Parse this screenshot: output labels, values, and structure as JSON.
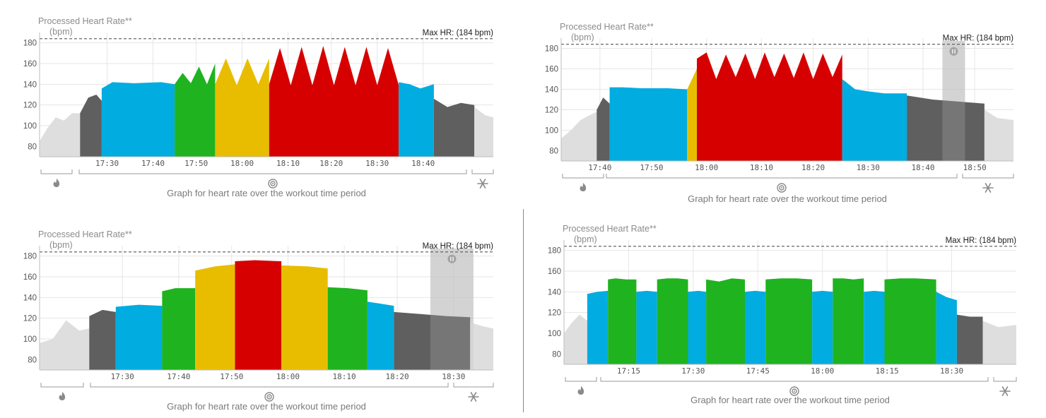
{
  "colors": {
    "warmup_cooldown": "#dedede",
    "dark": "#5f5f5f",
    "blue": "#00ace0",
    "green": "#1fb31f",
    "yellow": "#e8bd00",
    "red": "#d60000",
    "pause_band": "#bdbdbd",
    "grid": "#e6e6e6",
    "maxline": "#555555",
    "text": "#8c8c8c"
  },
  "chart_data": [
    {
      "type": "area",
      "title": "Processed Heart Rate**",
      "ylabel": "(bpm)",
      "caption": "Graph for heart rate over the workout time period",
      "max_hr_label": "Max HR: (184 bpm)",
      "max_hr": 184,
      "ylim": [
        70,
        190
      ],
      "yticks": [
        80,
        100,
        120,
        140,
        160,
        180
      ],
      "xlim": [
        17.25,
        18.93
      ],
      "xticks": [
        17.5,
        17.67,
        17.83,
        18.0,
        18.17,
        18.33,
        18.5,
        18.67
      ],
      "xtick_labels": [
        "17:30",
        "17:40",
        "17:50",
        "18:00",
        "18:10",
        "18:20",
        "18:30",
        "18:40"
      ],
      "grid": true,
      "segments": [
        {
          "x": [
            17.25,
            17.28,
            17.31,
            17.34,
            17.37,
            17.4
          ],
          "y": [
            85,
            98,
            108,
            105,
            112,
            112
          ],
          "zone": "warmup"
        },
        {
          "x": [
            17.4,
            17.43,
            17.46,
            17.48
          ],
          "y": [
            112,
            127,
            130,
            124
          ],
          "zone": "dark"
        },
        {
          "x": [
            17.48,
            17.52,
            17.6,
            17.7,
            17.75
          ],
          "y": [
            136,
            142,
            141,
            142,
            140
          ],
          "zone": "blue"
        },
        {
          "x": [
            17.75,
            17.78,
            17.81,
            17.84,
            17.87,
            17.9
          ],
          "y": [
            140,
            151,
            141,
            157,
            140,
            160
          ],
          "zone": "green"
        },
        {
          "x": [
            17.9,
            17.94,
            17.98,
            18.02,
            18.06,
            18.1
          ],
          "y": [
            140,
            165,
            139,
            165,
            140,
            165
          ],
          "zone": "yellow"
        },
        {
          "x": [
            18.1,
            18.14,
            18.18,
            18.22,
            18.26,
            18.3,
            18.34,
            18.38,
            18.42,
            18.46,
            18.5,
            18.54,
            18.58
          ],
          "y": [
            140,
            175,
            139,
            176,
            139,
            177,
            139,
            176,
            139,
            176,
            139,
            175,
            139
          ],
          "zone": "red"
        },
        {
          "x": [
            18.58,
            18.62,
            18.66,
            18.71
          ],
          "y": [
            142,
            140,
            136,
            140
          ],
          "zone": "blue"
        },
        {
          "x": [
            18.71,
            18.76,
            18.81,
            18.86
          ],
          "y": [
            126,
            118,
            122,
            120
          ],
          "zone": "dark"
        },
        {
          "x": [
            18.86,
            18.9,
            18.93
          ],
          "y": [
            118,
            110,
            108
          ],
          "zone": "cooldown"
        }
      ],
      "pauses": []
    },
    {
      "type": "area",
      "title": "Processed Heart Rate**",
      "ylabel": "(bpm)",
      "caption": "Graph for heart rate over the workout time period",
      "max_hr_label": "Max HR: (184 bpm)",
      "max_hr": 184,
      "ylim": [
        70,
        190
      ],
      "yticks": [
        80,
        100,
        120,
        140,
        160,
        180
      ],
      "xlim": [
        17.55,
        18.95
      ],
      "xticks": [
        17.67,
        17.83,
        18.0,
        18.17,
        18.33,
        18.5,
        18.67,
        18.83
      ],
      "xtick_labels": [
        "17:40",
        "17:50",
        "18:00",
        "18:10",
        "18:20",
        "18:30",
        "18:40",
        "18:50"
      ],
      "grid": true,
      "segments": [
        {
          "x": [
            17.55,
            17.58,
            17.61,
            17.64,
            17.66
          ],
          "y": [
            92,
            100,
            110,
            115,
            118
          ],
          "zone": "warmup"
        },
        {
          "x": [
            17.66,
            17.68,
            17.7
          ],
          "y": [
            120,
            132,
            126
          ],
          "zone": "dark"
        },
        {
          "x": [
            17.7,
            17.74,
            17.8,
            17.88,
            17.94
          ],
          "y": [
            142,
            142,
            141,
            141,
            140
          ],
          "zone": "blue"
        },
        {
          "x": [
            17.94,
            17.97
          ],
          "y": [
            140,
            160
          ],
          "zone": "yellow"
        },
        {
          "x": [
            17.97,
            18.0,
            18.03,
            18.06,
            18.09,
            18.12,
            18.15,
            18.18,
            18.21,
            18.24,
            18.27,
            18.3,
            18.33,
            18.36,
            18.39,
            18.42
          ],
          "y": [
            170,
            176,
            150,
            174,
            152,
            175,
            150,
            176,
            152,
            175,
            151,
            176,
            150,
            175,
            152,
            174
          ],
          "zone": "red"
        },
        {
          "x": [
            18.42,
            18.46,
            18.5,
            18.55,
            18.62
          ],
          "y": [
            150,
            140,
            138,
            136,
            136
          ],
          "zone": "blue"
        },
        {
          "x": [
            18.62,
            18.7,
            18.78,
            18.86
          ],
          "y": [
            134,
            130,
            128,
            126
          ],
          "zone": "dark"
        },
        {
          "x": [
            18.86,
            18.9,
            18.95
          ],
          "y": [
            120,
            112,
            110
          ],
          "zone": "cooldown"
        }
      ],
      "pauses": [
        {
          "x0": 18.73,
          "x1": 18.8
        }
      ]
    },
    {
      "type": "area",
      "title": "Processed Heart Rate**",
      "ylabel": "(bpm)",
      "caption": "Graph for heart rate over the workout time period",
      "max_hr_label": "Max HR: (184 bpm)",
      "max_hr": 184,
      "ylim": [
        70,
        190
      ],
      "yticks": [
        80,
        100,
        120,
        140,
        160,
        180
      ],
      "xlim": [
        17.25,
        18.62
      ],
      "xticks": [
        17.5,
        17.67,
        17.83,
        18.0,
        18.17,
        18.33,
        18.5
      ],
      "xtick_labels": [
        "17:30",
        "17:40",
        "17:50",
        "18:00",
        "18:10",
        "18:20",
        "18:30"
      ],
      "grid": true,
      "segments": [
        {
          "x": [
            17.25,
            17.29,
            17.33,
            17.37,
            17.4
          ],
          "y": [
            96,
            100,
            118,
            108,
            110
          ],
          "zone": "warmup"
        },
        {
          "x": [
            17.4,
            17.44,
            17.48
          ],
          "y": [
            122,
            128,
            126
          ],
          "zone": "dark"
        },
        {
          "x": [
            17.48,
            17.55,
            17.62
          ],
          "y": [
            131,
            133,
            132
          ],
          "zone": "blue"
        },
        {
          "x": [
            17.62,
            17.66,
            17.72
          ],
          "y": [
            146,
            149,
            149
          ],
          "zone": "green"
        },
        {
          "x": [
            17.72,
            17.78,
            17.84
          ],
          "y": [
            166,
            170,
            172
          ],
          "zone": "yellow"
        },
        {
          "x": [
            17.84,
            17.9,
            17.98
          ],
          "y": [
            175,
            176,
            175
          ],
          "zone": "red"
        },
        {
          "x": [
            17.98,
            18.06,
            18.12
          ],
          "y": [
            171,
            170,
            168
          ],
          "zone": "yellow"
        },
        {
          "x": [
            18.12,
            18.18,
            18.24
          ],
          "y": [
            150,
            149,
            147
          ],
          "zone": "green"
        },
        {
          "x": [
            18.24,
            18.28,
            18.32
          ],
          "y": [
            136,
            134,
            132
          ],
          "zone": "blue"
        },
        {
          "x": [
            18.32,
            18.4,
            18.48,
            18.55
          ],
          "y": [
            126,
            124,
            122,
            121
          ],
          "zone": "dark"
        },
        {
          "x": [
            18.55,
            18.59,
            18.62
          ],
          "y": [
            116,
            112,
            110
          ],
          "zone": "cooldown"
        }
      ],
      "pauses": [
        {
          "x0": 18.43,
          "x1": 18.56
        }
      ]
    },
    {
      "type": "area",
      "title": "Processed Heart Rate**",
      "ylabel": "(bpm)",
      "caption": "Graph for heart rate over the workout time period",
      "max_hr_label": "Max HR: (184 bpm)",
      "max_hr": 184,
      "ylim": [
        70,
        190
      ],
      "yticks": [
        80,
        100,
        120,
        140,
        160,
        180
      ],
      "xlim": [
        17.0,
        18.75
      ],
      "xticks": [
        17.25,
        17.5,
        17.75,
        18.0,
        18.25,
        18.5
      ],
      "xtick_labels": [
        "17:15",
        "17:30",
        "17:45",
        "18:00",
        "18:15",
        "18:30"
      ],
      "grid": true,
      "segments": [
        {
          "x": [
            17.0,
            17.03,
            17.06,
            17.09
          ],
          "y": [
            100,
            110,
            118,
            112
          ],
          "zone": "warmup"
        },
        {
          "x": [
            17.09,
            17.13,
            17.17
          ],
          "y": [
            138,
            140,
            141
          ],
          "zone": "blue"
        },
        {
          "x": [
            17.17,
            17.2,
            17.24,
            17.28
          ],
          "y": [
            152,
            153,
            152,
            152
          ],
          "zone": "green"
        },
        {
          "x": [
            17.28,
            17.32,
            17.36
          ],
          "y": [
            140,
            141,
            140
          ],
          "zone": "blue"
        },
        {
          "x": [
            17.36,
            17.4,
            17.44,
            17.48
          ],
          "y": [
            152,
            153,
            153,
            152
          ],
          "zone": "green"
        },
        {
          "x": [
            17.48,
            17.52,
            17.55
          ],
          "y": [
            140,
            141,
            140
          ],
          "zone": "blue"
        },
        {
          "x": [
            17.55,
            17.6,
            17.65,
            17.7
          ],
          "y": [
            152,
            150,
            153,
            152
          ],
          "zone": "green"
        },
        {
          "x": [
            17.7,
            17.74,
            17.78
          ],
          "y": [
            140,
            141,
            140
          ],
          "zone": "blue"
        },
        {
          "x": [
            17.78,
            17.84,
            17.9,
            17.96
          ],
          "y": [
            152,
            153,
            153,
            152
          ],
          "zone": "green"
        },
        {
          "x": [
            17.96,
            18.0,
            18.04
          ],
          "y": [
            140,
            141,
            140
          ],
          "zone": "blue"
        },
        {
          "x": [
            18.04,
            18.08,
            18.12,
            18.16
          ],
          "y": [
            153,
            153,
            152,
            153
          ],
          "zone": "green"
        },
        {
          "x": [
            18.16,
            18.2,
            18.24
          ],
          "y": [
            140,
            141,
            140
          ],
          "zone": "blue"
        },
        {
          "x": [
            18.24,
            18.3,
            18.36,
            18.44
          ],
          "y": [
            152,
            153,
            153,
            152
          ],
          "zone": "green"
        },
        {
          "x": [
            18.44,
            18.48,
            18.52
          ],
          "y": [
            140,
            135,
            132
          ],
          "zone": "blue"
        },
        {
          "x": [
            18.52,
            18.57,
            18.62
          ],
          "y": [
            118,
            116,
            116
          ],
          "zone": "dark"
        },
        {
          "x": [
            18.62,
            18.68,
            18.75
          ],
          "y": [
            112,
            106,
            108
          ],
          "zone": "cooldown"
        }
      ],
      "pauses": []
    }
  ]
}
